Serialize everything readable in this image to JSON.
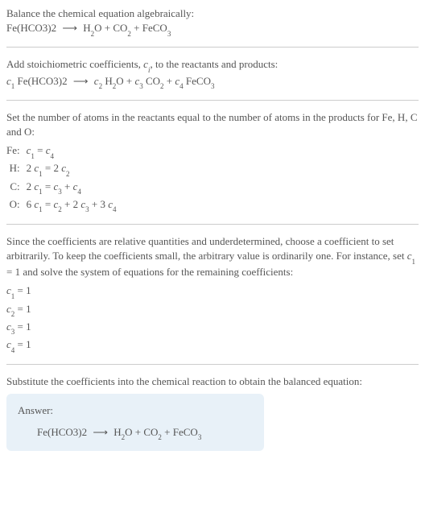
{
  "colors": {
    "text": "#555555",
    "divider": "#cccccc",
    "answer_bg": "#e8f1f8",
    "background": "#ffffff"
  },
  "typography": {
    "base_fontsize": 13,
    "sub_fontsize": 9,
    "font_family": "Georgia, Times New Roman, serif"
  },
  "intro": {
    "line1": "Balance the chemical equation algebraically:",
    "reactant": "Fe(HCO3)2",
    "arrow": "⟶",
    "products": [
      "H",
      "2",
      "O + CO",
      "2",
      " + FeCO",
      "3"
    ]
  },
  "stoich": {
    "text_a": "Add stoichiometric coefficients, ",
    "c_i": "c",
    "i": "i",
    "text_b": ", to the reactants and products:",
    "lhs_c": "c",
    "lhs_1": "1",
    "lhs_sp": " Fe(HCO3)2",
    "arrow": "⟶",
    "rhs_c2": "c",
    "rhs_2": "2",
    "rhs_h2o_a": " H",
    "rhs_h2o_2": "2",
    "rhs_h2o_b": "O + ",
    "rhs_c3": "c",
    "rhs_3": "3",
    "rhs_co2_a": " CO",
    "rhs_co2_2": "2",
    "rhs_co2_b": " + ",
    "rhs_c4": "c",
    "rhs_4": "4",
    "rhs_feco3_a": " FeCO",
    "rhs_feco3_3": "3"
  },
  "atoms": {
    "intro": "Set the number of atoms in the reactants equal to the number of atoms in the products for Fe, H, C and O:",
    "rows": [
      {
        "el": "Fe:",
        "pre": "",
        "c1s": "1",
        "mid": " = ",
        "r": [
          {
            "n": "",
            "c": "c",
            "s": "4"
          }
        ]
      },
      {
        "el": "H:",
        "pre": "2 ",
        "c1s": "1",
        "mid": " = 2 ",
        "r": [
          {
            "n": "",
            "c": "c",
            "s": "2"
          }
        ]
      },
      {
        "el": "C:",
        "pre": "2 ",
        "c1s": "1",
        "mid": " = ",
        "r": [
          {
            "n": "",
            "c": "c",
            "s": "3"
          },
          {
            "n": " + ",
            "c": "c",
            "s": "4"
          }
        ]
      },
      {
        "el": "O:",
        "pre": "6 ",
        "c1s": "1",
        "mid": " = ",
        "r": [
          {
            "n": "",
            "c": "c",
            "s": "2"
          },
          {
            "n": " + 2 ",
            "c": "c",
            "s": "3"
          },
          {
            "n": " + 3 ",
            "c": "c",
            "s": "4"
          }
        ]
      }
    ]
  },
  "underdet": {
    "text_a": "Since the coefficients are relative quantities and underdetermined, choose a coefficient to set arbitrarily. To keep the coefficients small, the arbitrary value is ordinarily one. For instance, set ",
    "c": "c",
    "s1": "1",
    "eq1": " = 1",
    "text_b": " and solve the system of equations for the remaining coefficients:",
    "lines": [
      {
        "c": "c",
        "s": "1",
        "v": " = 1"
      },
      {
        "c": "c",
        "s": "2",
        "v": " = 1"
      },
      {
        "c": "c",
        "s": "3",
        "v": " = 1"
      },
      {
        "c": "c",
        "s": "4",
        "v": " = 1"
      }
    ]
  },
  "subst": {
    "text": "Substitute the coefficients into the chemical reaction to obtain the balanced equation:"
  },
  "answer": {
    "label": "Answer:",
    "reactant": "Fe(HCO3)2",
    "arrow": "⟶",
    "p_h": "H",
    "p_h2": "2",
    "p_o": "O + CO",
    "p_co2": "2",
    "p_plus": " + FeCO",
    "p_feco3": "3"
  }
}
